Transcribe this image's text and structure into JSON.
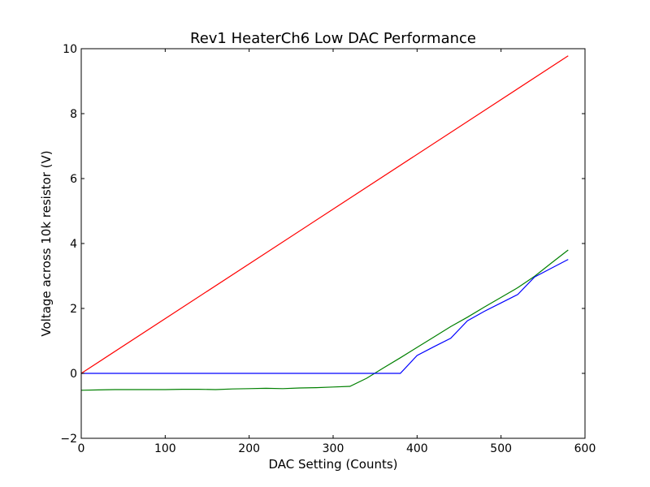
{
  "chart_data": {
    "type": "line",
    "title": "Rev1 HeaterCh6 Low DAC Performance",
    "xlabel": "DAC Setting (Counts)",
    "ylabel": "Voltage across 10k resistor (V)",
    "xlim": [
      0,
      600
    ],
    "ylim": [
      -2,
      10
    ],
    "xticks": [
      0,
      100,
      200,
      300,
      400,
      500,
      600
    ],
    "yticks": [
      -2,
      0,
      2,
      4,
      6,
      8,
      10
    ],
    "xtick_labels": [
      "0",
      "100",
      "200",
      "300",
      "400",
      "500",
      "600"
    ],
    "ytick_labels": [
      "−2",
      "0",
      "2",
      "4",
      "6",
      "8",
      "10"
    ],
    "grid": false,
    "legend": false,
    "series": [
      {
        "color": "#ff0000",
        "x": [
          0,
          580
        ],
        "y": [
          0.0,
          9.78
        ]
      },
      {
        "color": "#008000",
        "x": [
          0,
          20,
          40,
          60,
          80,
          100,
          120,
          140,
          160,
          180,
          200,
          220,
          240,
          260,
          280,
          300,
          320,
          340,
          360,
          380,
          400,
          420,
          440,
          460,
          480,
          500,
          520,
          540,
          560,
          580
        ],
        "y": [
          -0.52,
          -0.51,
          -0.5,
          -0.5,
          -0.5,
          -0.5,
          -0.49,
          -0.49,
          -0.5,
          -0.48,
          -0.47,
          -0.46,
          -0.47,
          -0.45,
          -0.44,
          -0.42,
          -0.4,
          -0.15,
          0.17,
          0.48,
          0.8,
          1.12,
          1.44,
          1.73,
          2.04,
          2.34,
          2.64,
          2.99,
          3.4,
          3.8
        ]
      },
      {
        "color": "#0000ff",
        "x": [
          0,
          100,
          200,
          300,
          380,
          400,
          420,
          440,
          460,
          480,
          500,
          520,
          540,
          560,
          580
        ],
        "y": [
          0.0,
          0.0,
          0.0,
          0.0,
          0.0,
          0.55,
          0.82,
          1.08,
          1.62,
          1.91,
          2.17,
          2.43,
          2.97,
          3.24,
          3.51
        ]
      }
    ]
  }
}
